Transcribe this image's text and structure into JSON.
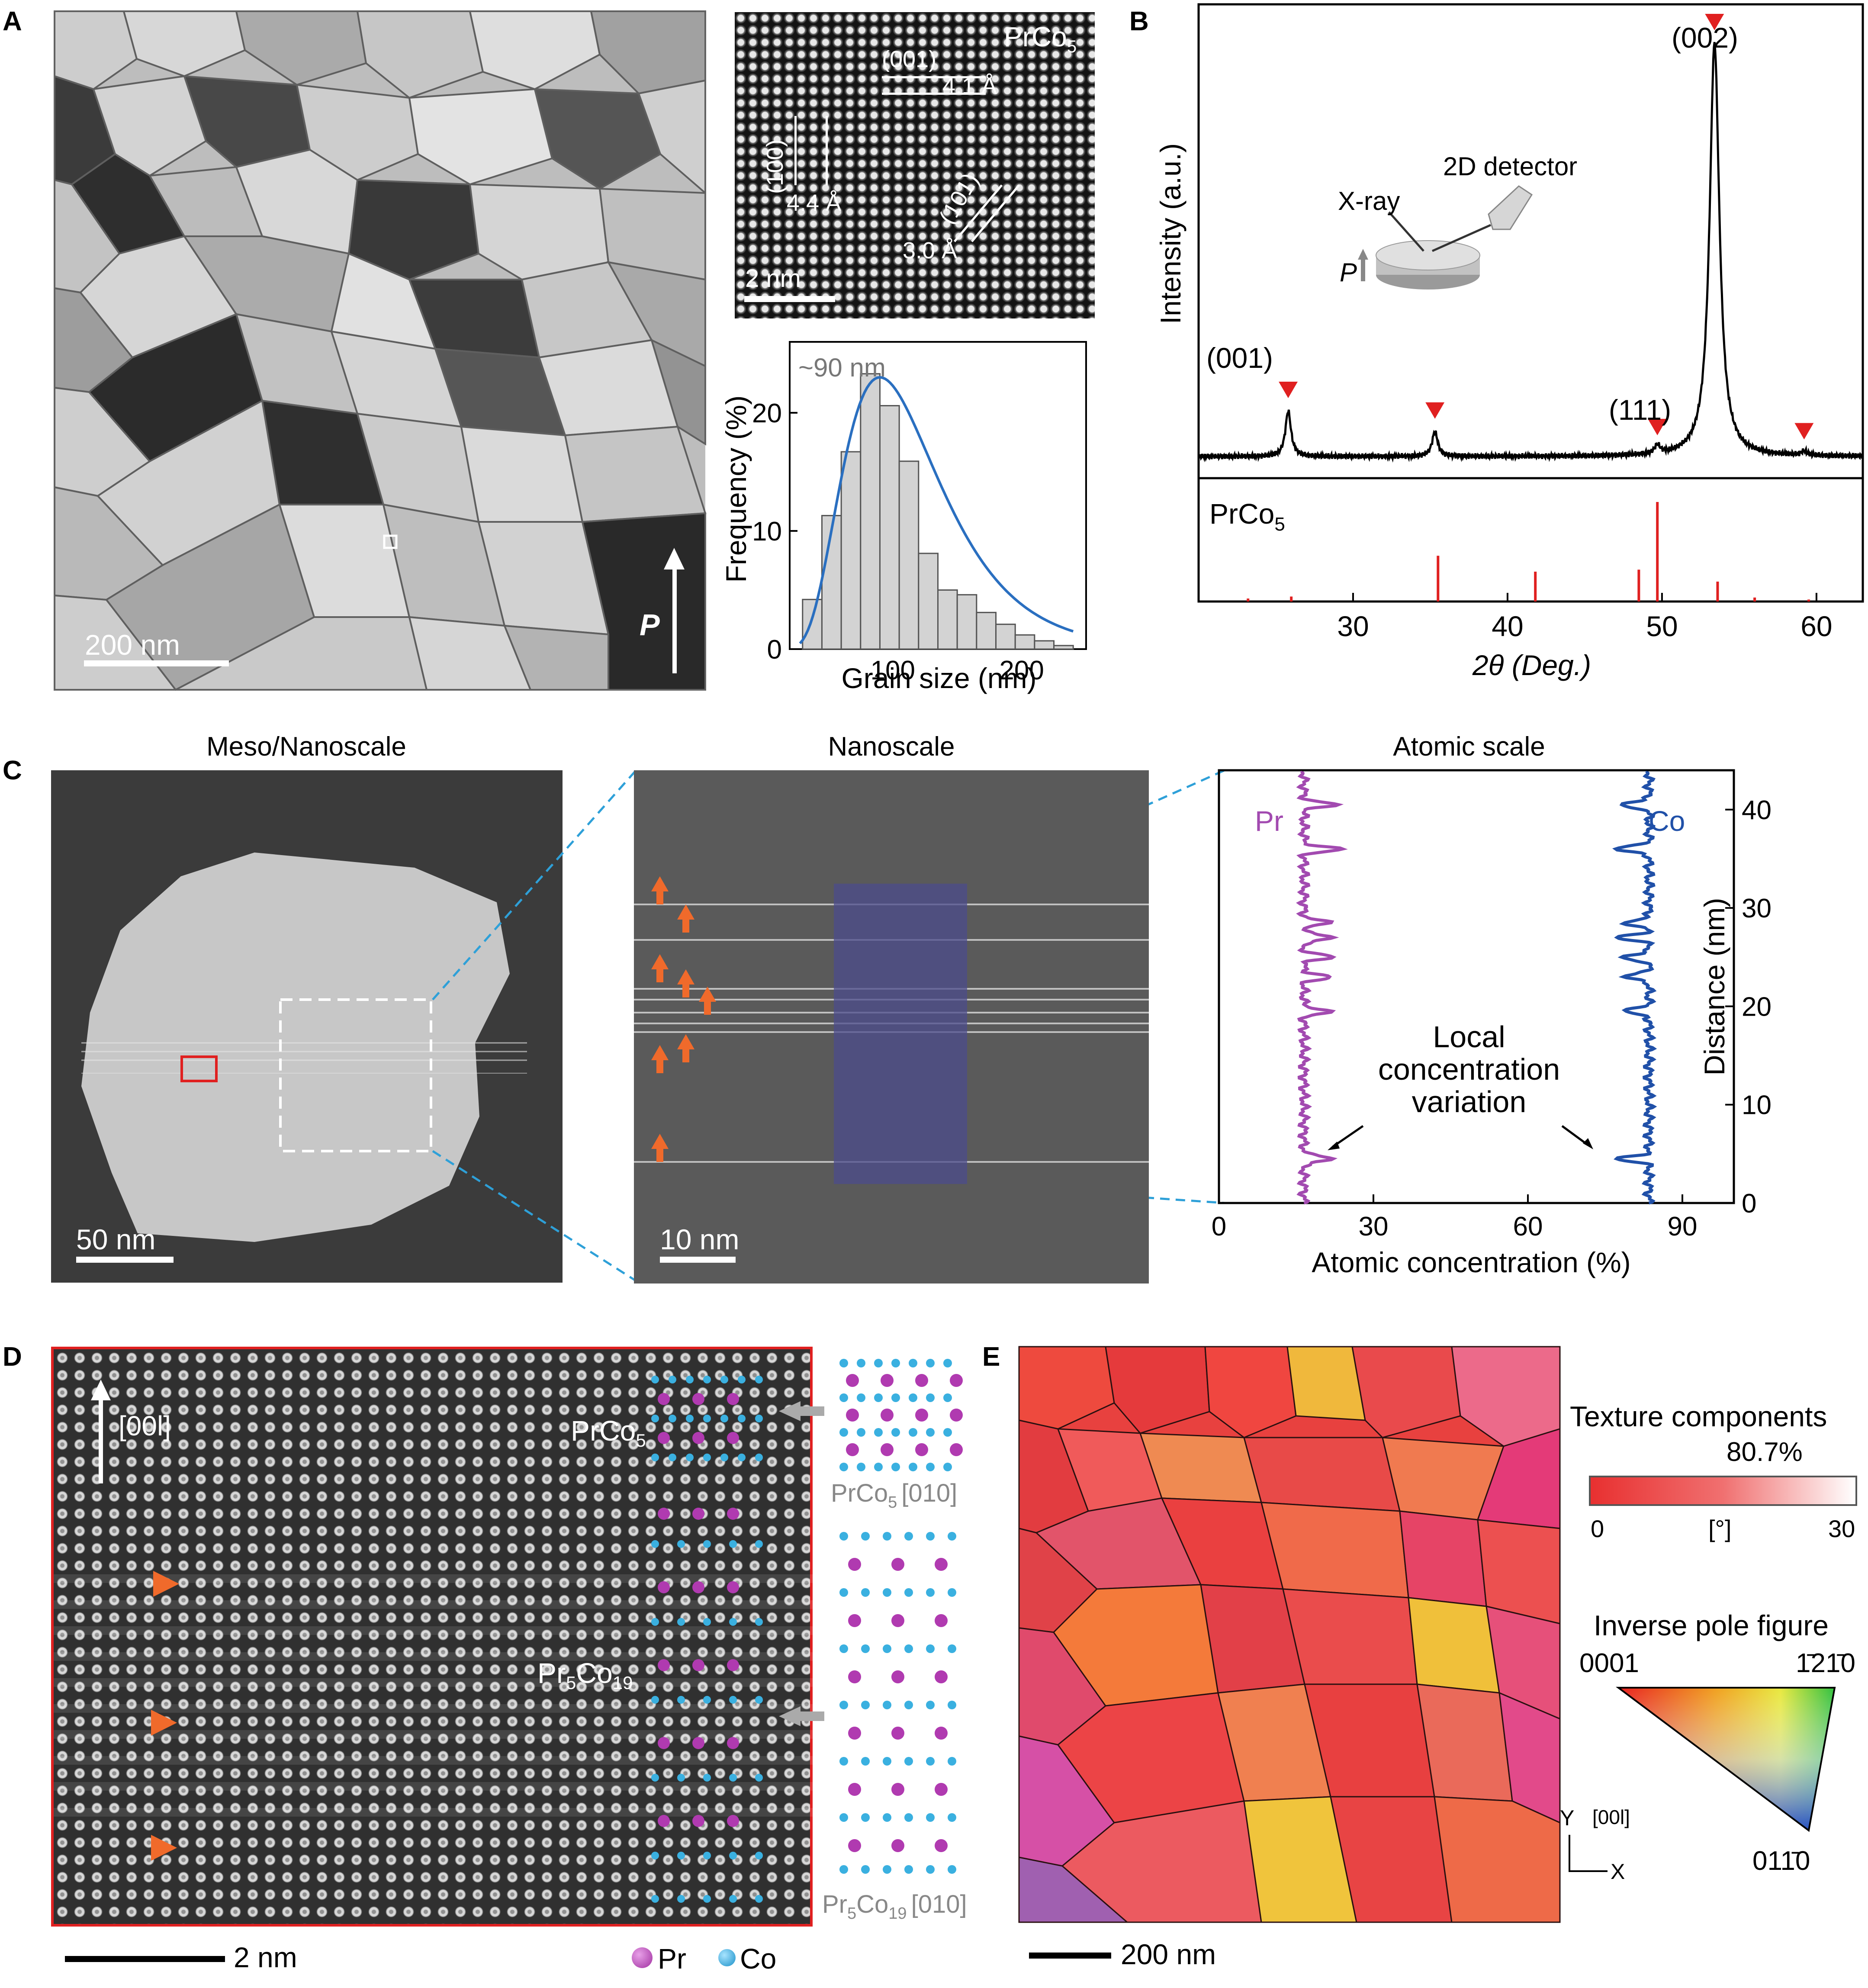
{
  "panels": {
    "A": {
      "label": "A",
      "bf_image": {
        "scale": "200 nm",
        "direction": "P"
      },
      "hrtem": {
        "phase": "PrCo",
        "phase_sub": "5",
        "plane_001": "(001)",
        "d_001": "4.1 Å",
        "plane_100": "(100)",
        "d_100": "4.4 Å",
        "plane_101": "(101)",
        "d_101": "3.0 Å",
        "scale": "2 nm"
      },
      "histogram_note": "~90 nm"
    },
    "B": {
      "label": "B",
      "peaks": {
        "p001": "(001)",
        "p111": "(111)",
        "p002": "(002)"
      },
      "inset": {
        "xray": "X-ray",
        "detector": "2D detector",
        "p": "P"
      },
      "ref_phase": "PrCo",
      "ref_phase_sub": "5"
    },
    "C": {
      "label": "C",
      "titles": {
        "meso": "Meso/Nanoscale",
        "nano": "Nanoscale",
        "atomic": "Atomic scale"
      },
      "meso_scale": "50 nm",
      "nano_scale": "10 nm",
      "profile_labels": {
        "pr": "Pr",
        "co": "Co",
        "annot_1": "Local",
        "annot_2": "concentration",
        "annot_3": "variation"
      }
    },
    "D": {
      "label": "D",
      "direction": "[00l]",
      "phase_1": "PrCo",
      "phase_1_sub": "5",
      "phase_2_a": "Pr",
      "phase_2_sub_a": "5",
      "phase_2_b": "Co",
      "phase_2_sub_b": "19",
      "model_1": "PrCo",
      "model_1_sub": "5",
      "model_1_zone": "[010]",
      "model_2_a": "Pr",
      "model_2_sub_a": "5",
      "model_2_b": "Co",
      "model_2_sub_b": "19",
      "model_2_zone": "[010]",
      "scale": "2 nm",
      "legend_pr": "Pr",
      "legend_co": "Co"
    },
    "E": {
      "label": "E",
      "texture_title": "Texture components",
      "texture_pct": "80.7%",
      "colorbar_min": "0",
      "colorbar_unit": "[°]",
      "colorbar_max": "30",
      "ipf_title": "Inverse pole figure",
      "ipf_0001": "0001",
      "ipf_1210": "1̄21̄0",
      "ipf_0110": "011̄0",
      "axis_y": "Y",
      "axis_dir": "[00l]",
      "axis_x": "X",
      "scale": "200 nm"
    }
  },
  "chart_data": [
    {
      "type": "bar",
      "panel": "A",
      "xlabel": "Grain size (nm)",
      "ylabel": "Frequency (%)",
      "xlim": [
        20,
        250
      ],
      "ylim": [
        0,
        26
      ],
      "xticks": [
        100,
        200
      ],
      "yticks": [
        0,
        10,
        20
      ],
      "bin_width": 15,
      "bin_centers": [
        37.5,
        52.5,
        67.5,
        82.5,
        97.5,
        112.5,
        127.5,
        142.5,
        157.5,
        172.5,
        187.5,
        202.5,
        217.5,
        232.5
      ],
      "values": [
        4.2,
        11.3,
        16.7,
        23.3,
        20.6,
        15.9,
        8.1,
        5.0,
        4.6,
        3.1,
        2.1,
        1.2,
        0.7,
        0.3
      ],
      "fit_peak": 90,
      "annotation": "~90 nm"
    },
    {
      "type": "line",
      "panel": "B",
      "xlabel": "2θ (Deg.)",
      "ylabel": "Intensity (a.u.)",
      "xlim": [
        20,
        63
      ],
      "xticks": [
        30,
        40,
        50,
        60
      ],
      "peaks": [
        {
          "two_theta": 25.8,
          "intensity": 0.11,
          "label": "(001)"
        },
        {
          "two_theta": 35.3,
          "intensity": 0.06,
          "label": ""
        },
        {
          "two_theta": 49.7,
          "intensity": 0.02,
          "label": "(111)"
        },
        {
          "two_theta": 53.4,
          "intensity": 1.0,
          "label": "(002)"
        },
        {
          "two_theta": 59.2,
          "intensity": 0.01,
          "label": ""
        }
      ],
      "reference": {
        "name": "PrCo5",
        "sticks": [
          {
            "two_theta": 23.2,
            "intensity": 0.03
          },
          {
            "two_theta": 26.0,
            "intensity": 0.05
          },
          {
            "two_theta": 35.5,
            "intensity": 0.46
          },
          {
            "two_theta": 41.8,
            "intensity": 0.3
          },
          {
            "two_theta": 48.5,
            "intensity": 0.32
          },
          {
            "two_theta": 49.7,
            "intensity": 1.0
          },
          {
            "two_theta": 53.6,
            "intensity": 0.2
          },
          {
            "two_theta": 56.0,
            "intensity": 0.04
          },
          {
            "two_theta": 59.5,
            "intensity": 0.02
          }
        ]
      }
    },
    {
      "type": "line",
      "panel": "C",
      "xlabel": "Atomic concentration (%)",
      "ylabel": "Distance (nm)",
      "xlim": [
        0,
        100
      ],
      "ylim": [
        0,
        44
      ],
      "xticks": [
        0,
        30,
        60,
        90
      ],
      "yticks": [
        0,
        10,
        20,
        30,
        40
      ],
      "series": [
        {
          "name": "Pr",
          "baseline": 16.5,
          "peaks": [
            {
              "d": 4.5,
              "amp": 6
            },
            {
              "d": 19.5,
              "amp": 5
            },
            {
              "d": 23,
              "amp": 5
            },
            {
              "d": 25,
              "amp": 5.5
            },
            {
              "d": 27,
              "amp": 6
            },
            {
              "d": 28.5,
              "amp": 5
            },
            {
              "d": 36,
              "amp": 7
            },
            {
              "d": 40.5,
              "amp": 6
            }
          ]
        },
        {
          "name": "Co",
          "baseline": 83.5,
          "peaks": [
            {
              "d": 4.5,
              "amp": -6
            },
            {
              "d": 19.5,
              "amp": -5
            },
            {
              "d": 23,
              "amp": -5
            },
            {
              "d": 25,
              "amp": -5.5
            },
            {
              "d": 27,
              "amp": -6
            },
            {
              "d": 28.5,
              "amp": -5
            },
            {
              "d": 36,
              "amp": -7
            },
            {
              "d": 40.5,
              "amp": -6
            }
          ]
        }
      ]
    }
  ]
}
